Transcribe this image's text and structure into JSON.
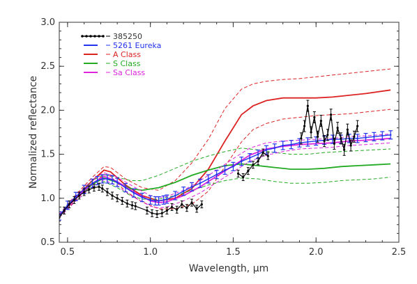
{
  "chart_data": {
    "type": "line",
    "xlabel": "Wavelength, µm",
    "ylabel": "Normalized reflectance",
    "xlim": [
      0.45,
      2.5
    ],
    "ylim": [
      0.5,
      3.0
    ],
    "x_ticks": [
      "0.5",
      "1.0",
      "1.5",
      "2.0",
      "2.5"
    ],
    "y_ticks": [
      "0.5",
      "1.0",
      "1.5",
      "2.0",
      "2.5",
      "3.0"
    ],
    "grid": false,
    "legend_position": "top-left",
    "series": [
      {
        "name": "385250",
        "color": "#000000",
        "style": "line-markers",
        "x": [
          0.45,
          0.48,
          0.51,
          0.54,
          0.57,
          0.6,
          0.63,
          0.66,
          0.69,
          0.71,
          0.74,
          0.77,
          0.8,
          0.83,
          0.86,
          0.89,
          0.91,
          0.98,
          1.01,
          1.04,
          1.07,
          1.1,
          1.13,
          1.16,
          1.19,
          1.22,
          1.25,
          1.28,
          1.31,
          1.53,
          1.56,
          1.59,
          1.62,
          1.65,
          1.68,
          1.71,
          1.91,
          1.93,
          1.95,
          1.97,
          1.99,
          2.01,
          2.03,
          2.05,
          2.07,
          2.09,
          2.11,
          2.13,
          2.15,
          2.17,
          2.19,
          2.21,
          2.23,
          2.25
        ],
        "y": [
          0.78,
          0.86,
          0.93,
          0.98,
          1.03,
          1.07,
          1.1,
          1.12,
          1.13,
          1.11,
          1.07,
          1.03,
          1.0,
          0.97,
          0.94,
          0.92,
          0.91,
          0.86,
          0.83,
          0.82,
          0.83,
          0.86,
          0.9,
          0.87,
          0.93,
          0.89,
          0.95,
          0.88,
          0.93,
          1.28,
          1.24,
          1.31,
          1.38,
          1.42,
          1.52,
          1.48,
          1.68,
          1.82,
          2.05,
          1.75,
          1.92,
          1.7,
          1.88,
          1.65,
          1.72,
          1.95,
          1.62,
          1.8,
          1.68,
          1.55,
          1.78,
          1.6,
          1.7,
          1.82
        ]
      },
      {
        "name": "5261 Eureka",
        "color": "#2233ee",
        "style": "error-bars",
        "x": [
          0.45,
          0.5,
          0.55,
          0.6,
          0.65,
          0.68,
          0.71,
          0.74,
          0.77,
          0.8,
          0.85,
          0.9,
          0.95,
          1.0,
          1.03,
          1.05,
          1.08,
          1.1,
          1.15,
          1.2,
          1.25,
          1.3,
          1.35,
          1.4,
          1.45,
          1.5,
          1.55,
          1.6,
          1.65,
          1.7,
          1.75,
          1.8,
          1.85,
          1.9,
          1.95,
          2.0,
          2.05,
          2.1,
          2.15,
          2.2,
          2.25,
          2.3,
          2.35,
          2.4,
          2.45
        ],
        "y": [
          0.8,
          0.92,
          1.02,
          1.1,
          1.17,
          1.2,
          1.22,
          1.22,
          1.21,
          1.18,
          1.12,
          1.06,
          1.01,
          0.98,
          0.97,
          0.97,
          0.98,
          0.99,
          1.03,
          1.08,
          1.13,
          1.17,
          1.22,
          1.27,
          1.32,
          1.36,
          1.42,
          1.46,
          1.5,
          1.55,
          1.57,
          1.6,
          1.61,
          1.63,
          1.64,
          1.65,
          1.66,
          1.67,
          1.67,
          1.68,
          1.68,
          1.69,
          1.7,
          1.71,
          1.72
        ]
      },
      {
        "name": "A Class",
        "color": "#dd2222",
        "style": "line-with-dashed-envelope",
        "x": [
          0.45,
          0.55,
          0.65,
          0.72,
          0.76,
          0.85,
          0.95,
          1.05,
          1.15,
          1.25,
          1.35,
          1.45,
          1.55,
          1.62,
          1.7,
          1.8,
          1.9,
          2.0,
          2.1,
          2.2,
          2.3,
          2.45
        ],
        "y": [
          0.8,
          1.01,
          1.2,
          1.32,
          1.3,
          1.15,
          1.03,
          0.97,
          1.0,
          1.11,
          1.33,
          1.65,
          1.95,
          2.05,
          2.11,
          2.14,
          2.14,
          2.14,
          2.15,
          2.17,
          2.19,
          2.23
        ],
        "upper": [
          0.82,
          1.04,
          1.24,
          1.36,
          1.35,
          1.22,
          1.12,
          1.09,
          1.2,
          1.4,
          1.67,
          2.02,
          2.24,
          2.3,
          2.33,
          2.35,
          2.36,
          2.38,
          2.4,
          2.42,
          2.44,
          2.47
        ],
        "lower": [
          0.78,
          0.98,
          1.16,
          1.27,
          1.25,
          1.08,
          0.96,
          0.88,
          0.88,
          0.93,
          1.08,
          1.36,
          1.64,
          1.78,
          1.85,
          1.9,
          1.92,
          1.94,
          1.95,
          1.96,
          1.98,
          2.01
        ]
      },
      {
        "name": "S  Class",
        "color": "#22aa22",
        "style": "line-with-dashed-envelope",
        "x": [
          0.45,
          0.55,
          0.65,
          0.72,
          0.8,
          0.88,
          0.95,
          1.05,
          1.15,
          1.25,
          1.35,
          1.45,
          1.55,
          1.65,
          1.75,
          1.85,
          1.95,
          2.05,
          2.15,
          2.25,
          2.35,
          2.45
        ],
        "y": [
          0.8,
          1.0,
          1.16,
          1.23,
          1.18,
          1.11,
          1.09,
          1.12,
          1.18,
          1.26,
          1.32,
          1.37,
          1.39,
          1.37,
          1.35,
          1.33,
          1.33,
          1.34,
          1.36,
          1.37,
          1.38,
          1.39
        ],
        "upper": [
          0.82,
          1.03,
          1.2,
          1.27,
          1.24,
          1.2,
          1.2,
          1.26,
          1.34,
          1.42,
          1.48,
          1.53,
          1.57,
          1.55,
          1.52,
          1.5,
          1.5,
          1.52,
          1.53,
          1.54,
          1.55,
          1.56
        ],
        "lower": [
          0.78,
          0.97,
          1.12,
          1.19,
          1.12,
          1.03,
          0.99,
          0.99,
          1.03,
          1.09,
          1.15,
          1.2,
          1.23,
          1.22,
          1.19,
          1.17,
          1.17,
          1.18,
          1.2,
          1.21,
          1.22,
          1.24
        ]
      },
      {
        "name": "Sa Class",
        "color": "#dd22dd",
        "style": "line-with-dashed-envelope",
        "x": [
          0.45,
          0.55,
          0.65,
          0.72,
          0.8,
          0.9,
          1.0,
          1.05,
          1.1,
          1.2,
          1.3,
          1.4,
          1.5,
          1.6,
          1.7,
          1.8,
          1.9,
          2.0,
          2.1,
          2.2,
          2.3,
          2.45
        ],
        "y": [
          0.8,
          1.0,
          1.17,
          1.25,
          1.19,
          1.07,
          0.97,
          0.95,
          0.96,
          1.03,
          1.13,
          1.25,
          1.37,
          1.49,
          1.56,
          1.59,
          1.61,
          1.62,
          1.63,
          1.65,
          1.66,
          1.68
        ],
        "upper": [
          0.82,
          1.03,
          1.21,
          1.29,
          1.24,
          1.13,
          1.03,
          1.01,
          1.02,
          1.09,
          1.2,
          1.32,
          1.45,
          1.57,
          1.63,
          1.65,
          1.66,
          1.67,
          1.68,
          1.7,
          1.71,
          1.73
        ],
        "lower": [
          0.78,
          0.97,
          1.13,
          1.21,
          1.14,
          1.01,
          0.91,
          0.89,
          0.9,
          0.97,
          1.06,
          1.18,
          1.3,
          1.42,
          1.49,
          1.53,
          1.56,
          1.57,
          1.58,
          1.6,
          1.61,
          1.63
        ]
      }
    ]
  }
}
